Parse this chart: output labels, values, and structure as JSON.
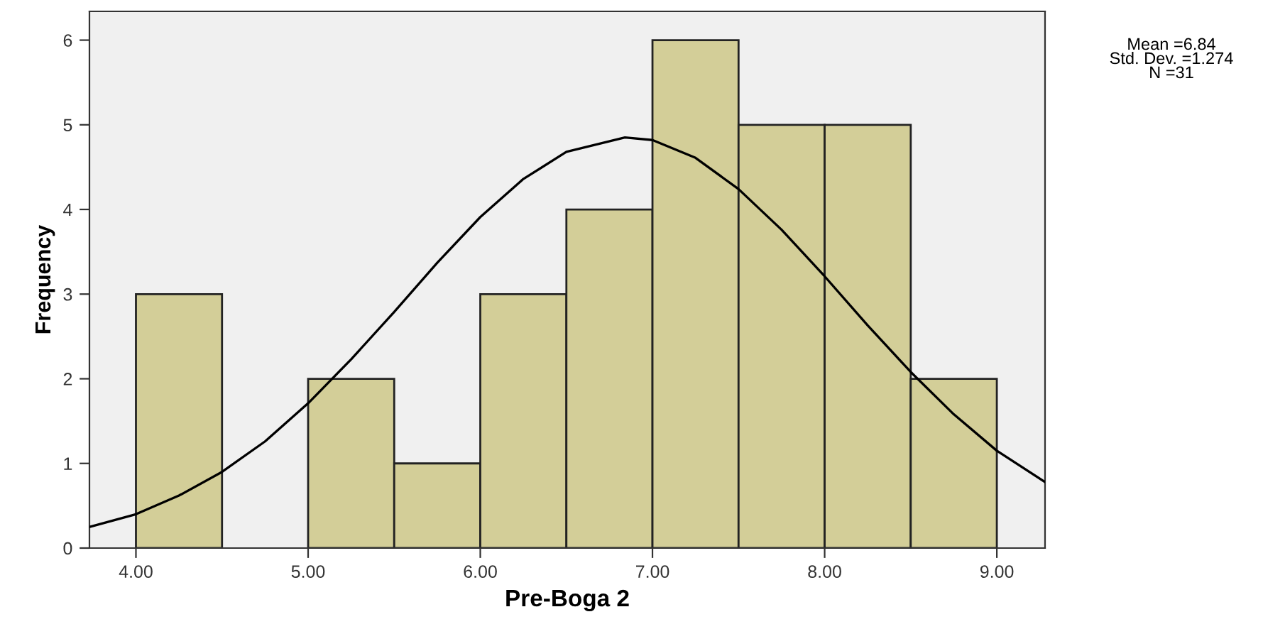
{
  "chart_data": {
    "type": "histogram",
    "xlabel": "Pre-Boga 2",
    "ylabel": "Frequency",
    "series": [
      {
        "color": "#d3ce98",
        "bins": [
          4.0,
          4.5,
          5.0,
          5.5,
          6.0,
          6.5,
          7.0,
          7.5,
          8.0,
          8.5,
          9.0
        ],
        "values": [
          3,
          0,
          2,
          1,
          3,
          4,
          6,
          5,
          5,
          2
        ]
      },
      {
        "type": "line",
        "color": "#000000",
        "x": [
          3.73,
          4.0,
          4.25,
          4.5,
          4.75,
          5.0,
          5.25,
          5.5,
          5.75,
          6.0,
          6.25,
          6.5,
          6.84,
          7.0,
          7.25,
          7.5,
          7.75,
          8.0,
          8.25,
          8.5,
          8.75,
          9.0,
          9.28
        ],
        "values": [
          0.25,
          0.4,
          0.62,
          0.9,
          1.26,
          1.71,
          2.23,
          2.79,
          3.37,
          3.91,
          4.36,
          4.68,
          4.85,
          4.82,
          4.61,
          4.24,
          3.76,
          3.21,
          2.63,
          2.08,
          1.58,
          1.15,
          0.78
        ]
      }
    ],
    "xlim": [
      3.73,
      9.28
    ],
    "ylim": [
      0,
      6.34
    ],
    "xticks": [
      {
        "value": 4,
        "label": "4.00"
      },
      {
        "value": 5,
        "label": "5.00"
      },
      {
        "value": 6,
        "label": "6.00"
      },
      {
        "value": 7,
        "label": "7.00"
      },
      {
        "value": 8,
        "label": "8.00"
      },
      {
        "value": 9,
        "label": "9.00"
      }
    ],
    "yticks": [
      0,
      1,
      2,
      3,
      4,
      5,
      6
    ],
    "grid": false,
    "legend": false,
    "annotations": [
      "Mean =6.84",
      "Std. Dev. =1.274",
      "N =31"
    ]
  }
}
